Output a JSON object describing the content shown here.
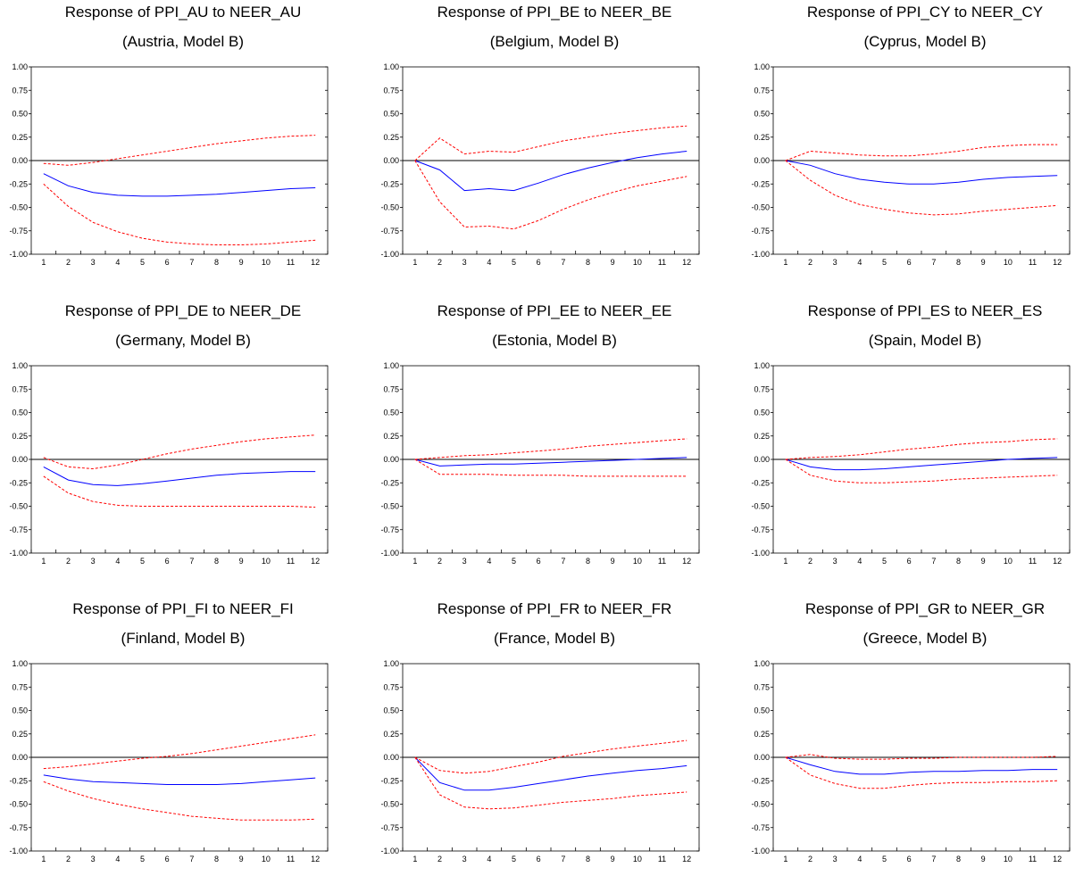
{
  "chart_data": [
    {
      "type": "line",
      "title": "Response of PPI_AU to NEER_AU",
      "subtitle": "(Austria, Model B)",
      "x": [
        1,
        2,
        3,
        4,
        5,
        6,
        7,
        8,
        9,
        10,
        11,
        12
      ],
      "ylim": [
        -1.0,
        1.0
      ],
      "yticks": [
        "1.00",
        "0.75",
        "0.50",
        "0.25",
        "0.00",
        "-0.25",
        "-0.50",
        "-0.75",
        "-1.00"
      ],
      "xticks": [
        "1",
        "2",
        "3",
        "4",
        "5",
        "6",
        "7",
        "8",
        "9",
        "10",
        "11",
        "12"
      ],
      "grid": false,
      "series": [
        {
          "role": "response",
          "color": "#0000ff",
          "style": "solid",
          "values": [
            -0.14,
            -0.27,
            -0.34,
            -0.37,
            -0.38,
            -0.38,
            -0.37,
            -0.36,
            -0.34,
            -0.32,
            -0.3,
            -0.29
          ]
        },
        {
          "role": "upper",
          "color": "#ff0000",
          "style": "dashed",
          "values": [
            -0.03,
            -0.05,
            -0.02,
            0.02,
            0.06,
            0.1,
            0.14,
            0.18,
            0.21,
            0.24,
            0.26,
            0.27
          ]
        },
        {
          "role": "lower",
          "color": "#ff0000",
          "style": "dashed",
          "values": [
            -0.25,
            -0.49,
            -0.66,
            -0.76,
            -0.83,
            -0.87,
            -0.89,
            -0.9,
            -0.9,
            -0.89,
            -0.87,
            -0.85
          ]
        }
      ]
    },
    {
      "type": "line",
      "title": "Response of PPI_BE to NEER_BE",
      "subtitle": "(Belgium, Model B)",
      "x": [
        1,
        2,
        3,
        4,
        5,
        6,
        7,
        8,
        9,
        10,
        11,
        12
      ],
      "ylim": [
        -1.0,
        1.0
      ],
      "yticks": [
        "1.00",
        "0.75",
        "0.50",
        "0.25",
        "0.00",
        "-0.25",
        "-0.50",
        "-0.75",
        "-1.00"
      ],
      "xticks": [
        "1",
        "2",
        "3",
        "4",
        "5",
        "6",
        "7",
        "8",
        "9",
        "10",
        "11",
        "12"
      ],
      "grid": false,
      "series": [
        {
          "role": "response",
          "color": "#0000ff",
          "style": "solid",
          "values": [
            0.0,
            -0.1,
            -0.32,
            -0.3,
            -0.32,
            -0.24,
            -0.15,
            -0.08,
            -0.02,
            0.03,
            0.07,
            0.1
          ]
        },
        {
          "role": "upper",
          "color": "#ff0000",
          "style": "dashed",
          "values": [
            0.0,
            0.24,
            0.07,
            0.1,
            0.09,
            0.15,
            0.21,
            0.25,
            0.29,
            0.32,
            0.35,
            0.37
          ]
        },
        {
          "role": "lower",
          "color": "#ff0000",
          "style": "dashed",
          "values": [
            0.0,
            -0.44,
            -0.71,
            -0.7,
            -0.73,
            -0.64,
            -0.52,
            -0.42,
            -0.34,
            -0.27,
            -0.22,
            -0.17
          ]
        }
      ]
    },
    {
      "type": "line",
      "title": "Response of PPI_CY to NEER_CY",
      "subtitle": "(Cyprus, Model B)",
      "x": [
        1,
        2,
        3,
        4,
        5,
        6,
        7,
        8,
        9,
        10,
        11,
        12
      ],
      "ylim": [
        -1.0,
        1.0
      ],
      "yticks": [
        "1.00",
        "0.75",
        "0.50",
        "0.25",
        "0.00",
        "-0.25",
        "-0.50",
        "-0.75",
        "-1.00"
      ],
      "xticks": [
        "1",
        "2",
        "3",
        "4",
        "5",
        "6",
        "7",
        "8",
        "9",
        "10",
        "11",
        "12"
      ],
      "grid": false,
      "series": [
        {
          "role": "response",
          "color": "#0000ff",
          "style": "solid",
          "values": [
            0.0,
            -0.05,
            -0.14,
            -0.2,
            -0.23,
            -0.25,
            -0.25,
            -0.23,
            -0.2,
            -0.18,
            -0.17,
            -0.16
          ]
        },
        {
          "role": "upper",
          "color": "#ff0000",
          "style": "dashed",
          "values": [
            0.0,
            0.1,
            0.08,
            0.06,
            0.05,
            0.05,
            0.07,
            0.1,
            0.14,
            0.16,
            0.17,
            0.17
          ]
        },
        {
          "role": "lower",
          "color": "#ff0000",
          "style": "dashed",
          "values": [
            0.0,
            -0.21,
            -0.37,
            -0.47,
            -0.52,
            -0.56,
            -0.58,
            -0.57,
            -0.54,
            -0.52,
            -0.5,
            -0.48
          ]
        }
      ]
    },
    {
      "type": "line",
      "title": "Response of PPI_DE to NEER_DE",
      "subtitle": "(Germany, Model B)",
      "x": [
        1,
        2,
        3,
        4,
        5,
        6,
        7,
        8,
        9,
        10,
        11,
        12
      ],
      "ylim": [
        -1.0,
        1.0
      ],
      "yticks": [
        "1.00",
        "0.75",
        "0.50",
        "0.25",
        "0.00",
        "-0.25",
        "-0.50",
        "-0.75",
        "-1.00"
      ],
      "xticks": [
        "1",
        "2",
        "3",
        "4",
        "5",
        "6",
        "7",
        "8",
        "9",
        "10",
        "11",
        "12"
      ],
      "grid": false,
      "series": [
        {
          "role": "response",
          "color": "#0000ff",
          "style": "solid",
          "values": [
            -0.08,
            -0.22,
            -0.27,
            -0.28,
            -0.26,
            -0.23,
            -0.2,
            -0.17,
            -0.15,
            -0.14,
            -0.13,
            -0.13
          ]
        },
        {
          "role": "upper",
          "color": "#ff0000",
          "style": "dashed",
          "values": [
            0.02,
            -0.08,
            -0.1,
            -0.06,
            0.0,
            0.06,
            0.11,
            0.15,
            0.19,
            0.22,
            0.24,
            0.26
          ]
        },
        {
          "role": "lower",
          "color": "#ff0000",
          "style": "dashed",
          "values": [
            -0.18,
            -0.36,
            -0.45,
            -0.49,
            -0.5,
            -0.5,
            -0.5,
            -0.5,
            -0.5,
            -0.5,
            -0.5,
            -0.51
          ]
        }
      ]
    },
    {
      "type": "line",
      "title": "Response of PPI_EE to NEER_EE",
      "subtitle": "(Estonia, Model B)",
      "x": [
        1,
        2,
        3,
        4,
        5,
        6,
        7,
        8,
        9,
        10,
        11,
        12
      ],
      "ylim": [
        -1.0,
        1.0
      ],
      "yticks": [
        "1.00",
        "0.75",
        "0.50",
        "0.25",
        "0.00",
        "-0.25",
        "-0.50",
        "-0.75",
        "-1.00"
      ],
      "xticks": [
        "1",
        "2",
        "3",
        "4",
        "5",
        "6",
        "7",
        "8",
        "9",
        "10",
        "11",
        "12"
      ],
      "grid": false,
      "series": [
        {
          "role": "response",
          "color": "#0000ff",
          "style": "solid",
          "values": [
            0.0,
            -0.07,
            -0.06,
            -0.05,
            -0.05,
            -0.04,
            -0.03,
            -0.02,
            -0.01,
            0.0,
            0.01,
            0.02
          ]
        },
        {
          "role": "upper",
          "color": "#ff0000",
          "style": "dashed",
          "values": [
            0.0,
            0.02,
            0.04,
            0.05,
            0.07,
            0.09,
            0.11,
            0.14,
            0.16,
            0.18,
            0.2,
            0.22
          ]
        },
        {
          "role": "lower",
          "color": "#ff0000",
          "style": "dashed",
          "values": [
            0.0,
            -0.16,
            -0.16,
            -0.16,
            -0.17,
            -0.17,
            -0.17,
            -0.18,
            -0.18,
            -0.18,
            -0.18,
            -0.18
          ]
        }
      ]
    },
    {
      "type": "line",
      "title": "Response of PPI_ES to NEER_ES",
      "subtitle": "(Spain, Model B)",
      "x": [
        1,
        2,
        3,
        4,
        5,
        6,
        7,
        8,
        9,
        10,
        11,
        12
      ],
      "ylim": [
        -1.0,
        1.0
      ],
      "yticks": [
        "1.00",
        "0.75",
        "0.50",
        "0.25",
        "0.00",
        "-0.25",
        "-0.50",
        "-0.75",
        "-1.00"
      ],
      "xticks": [
        "1",
        "2",
        "3",
        "4",
        "5",
        "6",
        "7",
        "8",
        "9",
        "10",
        "11",
        "12"
      ],
      "grid": false,
      "series": [
        {
          "role": "response",
          "color": "#0000ff",
          "style": "solid",
          "values": [
            0.0,
            -0.08,
            -0.11,
            -0.11,
            -0.1,
            -0.08,
            -0.06,
            -0.04,
            -0.02,
            0.0,
            0.01,
            0.02
          ]
        },
        {
          "role": "upper",
          "color": "#ff0000",
          "style": "dashed",
          "values": [
            0.0,
            0.02,
            0.03,
            0.05,
            0.08,
            0.11,
            0.13,
            0.16,
            0.18,
            0.19,
            0.21,
            0.22
          ]
        },
        {
          "role": "lower",
          "color": "#ff0000",
          "style": "dashed",
          "values": [
            0.0,
            -0.17,
            -0.23,
            -0.25,
            -0.25,
            -0.24,
            -0.23,
            -0.21,
            -0.2,
            -0.19,
            -0.18,
            -0.17
          ]
        }
      ]
    },
    {
      "type": "line",
      "title": "Response of PPI_FI to NEER_FI",
      "subtitle": "(Finland, Model B)",
      "x": [
        1,
        2,
        3,
        4,
        5,
        6,
        7,
        8,
        9,
        10,
        11,
        12
      ],
      "ylim": [
        -1.0,
        1.0
      ],
      "yticks": [
        "1.00",
        "0.75",
        "0.50",
        "0.25",
        "0.00",
        "-0.25",
        "-0.50",
        "-0.75",
        "-1.00"
      ],
      "xticks": [
        "1",
        "2",
        "3",
        "4",
        "5",
        "6",
        "7",
        "8",
        "9",
        "10",
        "11",
        "12"
      ],
      "grid": false,
      "series": [
        {
          "role": "response",
          "color": "#0000ff",
          "style": "solid",
          "values": [
            -0.19,
            -0.23,
            -0.26,
            -0.27,
            -0.28,
            -0.29,
            -0.29,
            -0.29,
            -0.28,
            -0.26,
            -0.24,
            -0.22
          ]
        },
        {
          "role": "upper",
          "color": "#ff0000",
          "style": "dashed",
          "values": [
            -0.12,
            -0.1,
            -0.07,
            -0.04,
            -0.01,
            0.01,
            0.04,
            0.08,
            0.12,
            0.16,
            0.2,
            0.24
          ]
        },
        {
          "role": "lower",
          "color": "#ff0000",
          "style": "dashed",
          "values": [
            -0.26,
            -0.36,
            -0.44,
            -0.5,
            -0.55,
            -0.59,
            -0.63,
            -0.65,
            -0.67,
            -0.67,
            -0.67,
            -0.66
          ]
        }
      ]
    },
    {
      "type": "line",
      "title": "Response of PPI_FR to NEER_FR",
      "subtitle": "(France, Model B)",
      "x": [
        1,
        2,
        3,
        4,
        5,
        6,
        7,
        8,
        9,
        10,
        11,
        12
      ],
      "ylim": [
        -1.0,
        1.0
      ],
      "yticks": [
        "1.00",
        "0.75",
        "0.50",
        "0.25",
        "0.00",
        "-0.25",
        "-0.50",
        "-0.75",
        "-1.00"
      ],
      "xticks": [
        "1",
        "2",
        "3",
        "4",
        "5",
        "6",
        "7",
        "8",
        "9",
        "10",
        "11",
        "12"
      ],
      "grid": false,
      "series": [
        {
          "role": "response",
          "color": "#0000ff",
          "style": "solid",
          "values": [
            0.0,
            -0.27,
            -0.35,
            -0.35,
            -0.32,
            -0.28,
            -0.24,
            -0.2,
            -0.17,
            -0.14,
            -0.12,
            -0.09
          ]
        },
        {
          "role": "upper",
          "color": "#ff0000",
          "style": "dashed",
          "values": [
            0.0,
            -0.14,
            -0.17,
            -0.15,
            -0.1,
            -0.05,
            0.01,
            0.05,
            0.09,
            0.12,
            0.15,
            0.18
          ]
        },
        {
          "role": "lower",
          "color": "#ff0000",
          "style": "dashed",
          "values": [
            0.0,
            -0.4,
            -0.53,
            -0.55,
            -0.54,
            -0.51,
            -0.48,
            -0.46,
            -0.44,
            -0.41,
            -0.39,
            -0.37
          ]
        }
      ]
    },
    {
      "type": "line",
      "title": "Response of PPI_GR to NEER_GR",
      "subtitle": "(Greece, Model B)",
      "x": [
        1,
        2,
        3,
        4,
        5,
        6,
        7,
        8,
        9,
        10,
        11,
        12
      ],
      "ylim": [
        -1.0,
        1.0
      ],
      "yticks": [
        "1.00",
        "0.75",
        "0.50",
        "0.25",
        "0.00",
        "-0.25",
        "-0.50",
        "-0.75",
        "-1.00"
      ],
      "xticks": [
        "1",
        "2",
        "3",
        "4",
        "5",
        "6",
        "7",
        "8",
        "9",
        "10",
        "11",
        "12"
      ],
      "grid": false,
      "series": [
        {
          "role": "response",
          "color": "#0000ff",
          "style": "solid",
          "values": [
            0.0,
            -0.08,
            -0.15,
            -0.18,
            -0.18,
            -0.16,
            -0.15,
            -0.15,
            -0.14,
            -0.14,
            -0.13,
            -0.13
          ]
        },
        {
          "role": "upper",
          "color": "#ff0000",
          "style": "dashed",
          "values": [
            0.0,
            0.03,
            -0.01,
            -0.02,
            -0.02,
            -0.01,
            -0.01,
            0.0,
            0.0,
            0.0,
            0.0,
            0.01
          ]
        },
        {
          "role": "lower",
          "color": "#ff0000",
          "style": "dashed",
          "values": [
            0.0,
            -0.19,
            -0.28,
            -0.33,
            -0.33,
            -0.3,
            -0.28,
            -0.27,
            -0.27,
            -0.26,
            -0.26,
            -0.25
          ]
        }
      ]
    }
  ]
}
